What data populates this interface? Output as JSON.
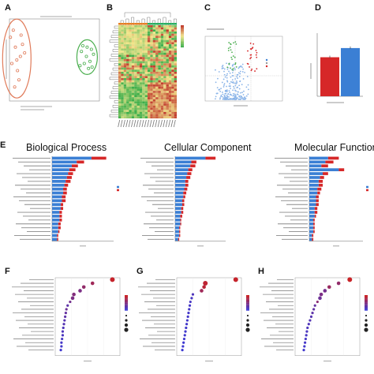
{
  "panels": {
    "A": "A",
    "B": "B",
    "C": "C",
    "D": "D",
    "E": "E",
    "F": "F",
    "G": "G",
    "H": "H"
  },
  "go_titles": {
    "bp": "Biological Process",
    "cc": "Cellular Component",
    "mf": "Molecular Function"
  },
  "colors": {
    "up": "#d62728",
    "down": "#3b7fd4",
    "group1": "#e07b5a",
    "group2": "#4caf50",
    "heat_high": "#c0392b",
    "heat_mid": "#f1e58a",
    "heat_low": "#3cae4a",
    "scale_high": "#cc2222",
    "scale_low": "#3a3ad6"
  },
  "chart_data": [
    {
      "panel": "A",
      "type": "scatter",
      "title": "",
      "xlabel": "",
      "ylabel": "",
      "series": [
        {
          "group": 1,
          "points": [
            [
              -0.62,
              0.32
            ],
            [
              -0.55,
              0.18
            ],
            [
              -0.48,
              0.05
            ],
            [
              -0.6,
              -0.05
            ],
            [
              -0.52,
              -0.15
            ],
            [
              -0.45,
              0.22
            ],
            [
              -0.58,
              0.42
            ],
            [
              -0.5,
              -0.28
            ],
            [
              -0.42,
              0.1
            ],
            [
              -0.56,
              -0.38
            ],
            [
              -0.47,
              0.35
            ],
            [
              -0.53,
              0.0
            ]
          ]
        },
        {
          "group": 2,
          "points": [
            [
              0.38,
              0.12
            ],
            [
              0.45,
              0.05
            ],
            [
              0.52,
              0.15
            ],
            [
              0.42,
              -0.05
            ],
            [
              0.48,
              -0.12
            ],
            [
              0.55,
              0.08
            ],
            [
              0.4,
              0.2
            ],
            [
              0.5,
              -0.02
            ],
            [
              0.46,
              0.18
            ],
            [
              0.36,
              -0.08
            ],
            [
              0.53,
              -0.1
            ]
          ]
        }
      ]
    },
    {
      "panel": "B",
      "type": "heatmap",
      "rows": 44,
      "cols": 22,
      "title": "",
      "xlabel": "",
      "ylabel": ""
    },
    {
      "panel": "C",
      "type": "scatter",
      "title": "",
      "xlabel": "",
      "ylabel": "",
      "xlim": [
        -6,
        6
      ],
      "ylim": [
        0,
        8
      ],
      "series": [
        {
          "group": "none",
          "n": 220
        },
        {
          "group": "up",
          "n": 22
        },
        {
          "group": "down",
          "n": 24
        }
      ]
    },
    {
      "panel": "D",
      "type": "bar",
      "title": "",
      "xlabel": "",
      "ylabel": "",
      "categories": [
        "1",
        "2"
      ],
      "values": [
        34,
        42
      ],
      "ylim": [
        0,
        55
      ]
    },
    {
      "panel": "E-BP",
      "type": "bar",
      "orientation": "horizontal",
      "series": [
        {
          "group": "down",
          "values": [
            32,
            20,
            16,
            14,
            13,
            12,
            11,
            10,
            9,
            9,
            8,
            8,
            7,
            7,
            6,
            6,
            6,
            5,
            5,
            5,
            4,
            4
          ]
        },
        {
          "group": "up",
          "values": [
            12,
            6,
            5,
            5,
            4,
            4,
            4,
            3,
            3,
            3,
            3,
            3,
            2,
            2,
            2,
            2,
            2,
            2,
            2,
            1,
            1,
            1
          ]
        }
      ],
      "xlim": [
        0,
        50
      ]
    },
    {
      "panel": "E-CC",
      "type": "bar",
      "orientation": "horizontal",
      "series": [
        {
          "group": "down",
          "values": [
            30,
            16,
            15,
            13,
            12,
            11,
            10,
            10,
            9,
            8,
            8,
            7,
            7,
            6,
            6,
            5,
            5,
            5,
            4,
            4,
            4,
            3
          ]
        },
        {
          "group": "up",
          "values": [
            10,
            5,
            5,
            4,
            4,
            4,
            3,
            3,
            3,
            3,
            2,
            2,
            2,
            2,
            2,
            2,
            1,
            1,
            1,
            1,
            1,
            1
          ]
        }
      ],
      "xlim": [
        0,
        50
      ]
    },
    {
      "panel": "E-MF",
      "type": "bar",
      "orientation": "horizontal",
      "series": [
        {
          "group": "down",
          "values": [
            14,
            12,
            9,
            22,
            10,
            8,
            7,
            7,
            6,
            6,
            5,
            5,
            5,
            4,
            4,
            4,
            3,
            3,
            3,
            3,
            2,
            2
          ]
        },
        {
          "group": "up",
          "values": [
            8,
            6,
            5,
            4,
            4,
            3,
            3,
            3,
            3,
            2,
            2,
            2,
            2,
            2,
            2,
            1,
            1,
            1,
            1,
            1,
            1,
            1
          ]
        }
      ],
      "xlim": [
        0,
        40
      ]
    },
    {
      "panel": "F",
      "type": "scatter",
      "series": [
        {
          "points": [
            {
              "x": 0.92,
              "y": 21,
              "size": 3,
              "level": 0.05
            },
            {
              "x": 0.6,
              "y": 20,
              "size": 2,
              "level": 0.3
            },
            {
              "x": 0.46,
              "y": 19,
              "size": 2,
              "level": 0.4
            },
            {
              "x": 0.4,
              "y": 18,
              "size": 2,
              "level": 0.55
            },
            {
              "x": 0.3,
              "y": 17,
              "size": 2,
              "level": 0.5
            },
            {
              "x": 0.28,
              "y": 16,
              "size": 2,
              "level": 0.55
            },
            {
              "x": 0.24,
              "y": 15,
              "size": 1,
              "level": 0.6
            },
            {
              "x": 0.2,
              "y": 14,
              "size": 1,
              "level": 0.75
            },
            {
              "x": 0.18,
              "y": 13,
              "size": 1,
              "level": 0.65
            },
            {
              "x": 0.17,
              "y": 12,
              "size": 1,
              "level": 0.7
            },
            {
              "x": 0.16,
              "y": 11,
              "size": 1,
              "level": 0.75
            },
            {
              "x": 0.15,
              "y": 10,
              "size": 1,
              "level": 0.8
            },
            {
              "x": 0.14,
              "y": 9,
              "size": 1,
              "level": 0.8
            },
            {
              "x": 0.13,
              "y": 8,
              "size": 1,
              "level": 0.85
            },
            {
              "x": 0.12,
              "y": 7,
              "size": 1,
              "level": 0.85
            },
            {
              "x": 0.12,
              "y": 6,
              "size": 1,
              "level": 0.88
            },
            {
              "x": 0.11,
              "y": 5,
              "size": 1,
              "level": 0.9
            },
            {
              "x": 0.1,
              "y": 4,
              "size": 1,
              "level": 0.92
            },
            {
              "x": 0.1,
              "y": 3,
              "size": 1,
              "level": 0.94
            },
            {
              "x": 0.09,
              "y": 2,
              "size": 1,
              "level": 0.96
            }
          ]
        }
      ]
    },
    {
      "panel": "G",
      "type": "scatter",
      "series": [
        {
          "points": [
            {
              "x": 0.95,
              "y": 21,
              "size": 3,
              "level": 0.05
            },
            {
              "x": 0.46,
              "y": 20,
              "size": 3,
              "level": 0.1
            },
            {
              "x": 0.44,
              "y": 19,
              "size": 2,
              "level": 0.12
            },
            {
              "x": 0.4,
              "y": 18,
              "size": 2,
              "level": 0.3
            },
            {
              "x": 0.26,
              "y": 17,
              "size": 1,
              "level": 0.85
            },
            {
              "x": 0.24,
              "y": 16,
              "size": 1,
              "level": 0.9
            },
            {
              "x": 0.22,
              "y": 15,
              "size": 1,
              "level": 0.9
            },
            {
              "x": 0.21,
              "y": 14,
              "size": 1,
              "level": 0.92
            },
            {
              "x": 0.2,
              "y": 13,
              "size": 1,
              "level": 0.92
            },
            {
              "x": 0.19,
              "y": 12,
              "size": 1,
              "level": 0.93
            },
            {
              "x": 0.18,
              "y": 11,
              "size": 1,
              "level": 0.93
            },
            {
              "x": 0.17,
              "y": 10,
              "size": 1,
              "level": 0.94
            },
            {
              "x": 0.16,
              "y": 9,
              "size": 1,
              "level": 0.94
            },
            {
              "x": 0.15,
              "y": 8,
              "size": 1,
              "level": 0.95
            },
            {
              "x": 0.14,
              "y": 7,
              "size": 1,
              "level": 0.95
            },
            {
              "x": 0.13,
              "y": 6,
              "size": 1,
              "level": 0.96
            },
            {
              "x": 0.12,
              "y": 5,
              "size": 1,
              "level": 0.96
            },
            {
              "x": 0.11,
              "y": 4,
              "size": 1,
              "level": 0.97
            },
            {
              "x": 0.1,
              "y": 3,
              "size": 1,
              "level": 0.97
            },
            {
              "x": 0.09,
              "y": 2,
              "size": 1,
              "level": 0.98
            }
          ]
        }
      ]
    },
    {
      "panel": "H",
      "type": "scatter",
      "series": [
        {
          "points": [
            {
              "x": 0.88,
              "y": 21,
              "size": 3,
              "level": 0.03
            },
            {
              "x": 0.7,
              "y": 20,
              "size": 2,
              "level": 0.4
            },
            {
              "x": 0.55,
              "y": 19,
              "size": 2,
              "level": 0.35
            },
            {
              "x": 0.48,
              "y": 18,
              "size": 2,
              "level": 0.6
            },
            {
              "x": 0.42,
              "y": 17,
              "size": 2,
              "level": 0.55
            },
            {
              "x": 0.4,
              "y": 16,
              "size": 2,
              "level": 0.65
            },
            {
              "x": 0.36,
              "y": 15,
              "size": 1,
              "level": 0.45
            },
            {
              "x": 0.32,
              "y": 14,
              "size": 1,
              "level": 0.7
            },
            {
              "x": 0.3,
              "y": 13,
              "size": 1,
              "level": 0.72
            },
            {
              "x": 0.28,
              "y": 12,
              "size": 1,
              "level": 0.75
            },
            {
              "x": 0.26,
              "y": 11,
              "size": 1,
              "level": 0.8
            },
            {
              "x": 0.24,
              "y": 10,
              "size": 1,
              "level": 0.82
            },
            {
              "x": 0.22,
              "y": 9,
              "size": 1,
              "level": 0.85
            },
            {
              "x": 0.2,
              "y": 8,
              "size": 1,
              "level": 0.86
            },
            {
              "x": 0.19,
              "y": 7,
              "size": 1,
              "level": 0.88
            },
            {
              "x": 0.18,
              "y": 6,
              "size": 1,
              "level": 0.9
            },
            {
              "x": 0.17,
              "y": 5,
              "size": 1,
              "level": 0.91
            },
            {
              "x": 0.16,
              "y": 4,
              "size": 1,
              "level": 0.92
            },
            {
              "x": 0.15,
              "y": 3,
              "size": 1,
              "level": 0.94
            },
            {
              "x": 0.14,
              "y": 2,
              "size": 1,
              "level": 0.95
            }
          ]
        }
      ]
    }
  ]
}
